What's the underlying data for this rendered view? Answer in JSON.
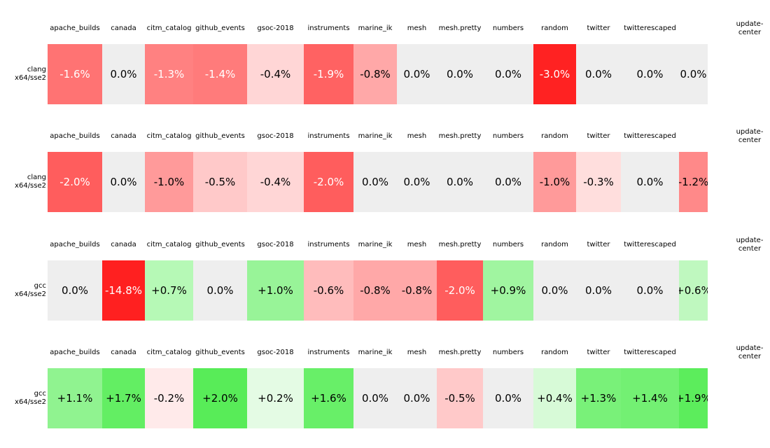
{
  "figure": {
    "background": "#ffffff",
    "zero_cell_color": "#eeeeee",
    "white_text_values": [
      "-1.3%",
      "-1.4%",
      "-1.6%",
      "-1.9%",
      "-2.0%",
      "-3.0%",
      "-14.8%"
    ],
    "value_colors": {
      "-14.8%": "#ff2020",
      "-3.0%": "#ff2222",
      "-2.0%": "#ff5d5d",
      "-1.9%": "#ff6262",
      "-1.6%": "#ff7373",
      "-1.4%": "#ff7b7b",
      "-1.3%": "#ff8181",
      "-1.2%": "#ff8989",
      "-1.0%": "#ff9a9a",
      "-0.8%": "#ffa8a8",
      "-0.6%": "#ffbcbc",
      "-0.5%": "#ffc9c9",
      "-0.4%": "#ffd6d6",
      "-0.3%": "#ffdedd",
      "-0.2%": "#ffeaea",
      "0.0%": "#eeeeee",
      "+0.2%": "#e4fbe4",
      "+0.4%": "#d7fad7",
      "+0.6%": "#bff8bf",
      "+0.7%": "#b6f9b6",
      "+0.9%": "#a0f5a0",
      "+1.0%": "#98f498",
      "+1.1%": "#90f390",
      "+1.3%": "#79f179",
      "+1.4%": "#73f073",
      "+1.6%": "#68ef68",
      "+1.7%": "#63ee63",
      "+1.9%": "#5ced5c",
      "+2.0%": "#58ec58"
    },
    "columns": [
      {
        "name": "apache_builds",
        "header_lines": [
          "apache_builds"
        ]
      },
      {
        "name": "canada",
        "header_lines": [
          "canada"
        ]
      },
      {
        "name": "citm_catalog",
        "header_lines": [
          "citm_catalog"
        ]
      },
      {
        "name": "github_events",
        "header_lines": [
          "github_events"
        ]
      },
      {
        "name": "gsoc-2018",
        "header_lines": [
          "gsoc-2018"
        ]
      },
      {
        "name": "instruments",
        "header_lines": [
          "instruments"
        ]
      },
      {
        "name": "marine_ik",
        "header_lines": [
          "marine_ik"
        ]
      },
      {
        "name": "mesh",
        "header_lines": [
          "mesh"
        ]
      },
      {
        "name": "mesh.pretty",
        "header_lines": [
          "mesh.pretty"
        ]
      },
      {
        "name": "numbers",
        "header_lines": [
          "numbers"
        ]
      },
      {
        "name": "random",
        "header_lines": [
          "random"
        ]
      },
      {
        "name": "twitter",
        "header_lines": [
          "twitter"
        ]
      },
      {
        "name": "twitterescaped",
        "header_lines": [
          "twitterescaped"
        ]
      },
      {
        "name": "update-center",
        "header_lines": [
          "update-",
          "center"
        ]
      }
    ],
    "blocks": [
      {
        "row_label_lines": [
          "clang",
          "x64/sse2"
        ],
        "values": [
          "-1.6%",
          "0.0%",
          "-1.3%",
          "-1.4%",
          "-0.4%",
          "-1.9%",
          "-0.8%",
          "0.0%",
          "0.0%",
          "0.0%",
          "-3.0%",
          "0.0%",
          "0.0%",
          "0.0%"
        ]
      },
      {
        "row_label_lines": [
          "clang",
          "x64/sse2"
        ],
        "values": [
          "-2.0%",
          "0.0%",
          "-1.0%",
          "-0.5%",
          "-0.4%",
          "-2.0%",
          "0.0%",
          "0.0%",
          "0.0%",
          "0.0%",
          "-1.0%",
          "-0.3%",
          "0.0%",
          "-1.2%"
        ]
      },
      {
        "row_label_lines": [
          "gcc",
          "x64/sse2"
        ],
        "values": [
          "0.0%",
          "-14.8%",
          "+0.7%",
          "0.0%",
          "+1.0%",
          "-0.6%",
          "-0.8%",
          "-0.8%",
          "-2.0%",
          "+0.9%",
          "0.0%",
          "0.0%",
          "0.0%",
          "+0.6%"
        ]
      },
      {
        "row_label_lines": [
          "gcc",
          "x64/sse2"
        ],
        "values": [
          "+1.1%",
          "+1.7%",
          "-0.2%",
          "+2.0%",
          "+0.2%",
          "+1.6%",
          "0.0%",
          "0.0%",
          "-0.5%",
          "0.0%",
          "+0.4%",
          "+1.3%",
          "+1.4%",
          "+1.9%"
        ]
      }
    ]
  },
  "chart_data": {
    "type": "heatmap",
    "title": "",
    "categories": [
      "apache_builds",
      "canada",
      "citm_catalog",
      "github_events",
      "gsoc-2018",
      "instruments",
      "marine_ik",
      "mesh",
      "mesh.pretty",
      "numbers",
      "random",
      "twitter",
      "twitterescaped",
      "update-center"
    ],
    "series": [
      {
        "name": "clang x64/sse2",
        "values": [
          -1.6,
          0.0,
          -1.3,
          -1.4,
          -0.4,
          -1.9,
          -0.8,
          0.0,
          0.0,
          0.0,
          -3.0,
          0.0,
          0.0,
          0.0
        ]
      },
      {
        "name": "clang x64/sse2",
        "values": [
          -2.0,
          0.0,
          -1.0,
          -0.5,
          -0.4,
          -2.0,
          0.0,
          0.0,
          0.0,
          0.0,
          -1.0,
          -0.3,
          0.0,
          -1.2
        ]
      },
      {
        "name": "gcc x64/sse2",
        "values": [
          0.0,
          -14.8,
          0.7,
          0.0,
          1.0,
          -0.6,
          -0.8,
          -0.8,
          -2.0,
          0.9,
          0.0,
          0.0,
          0.0,
          0.6
        ]
      },
      {
        "name": "gcc x64/sse2",
        "values": [
          1.1,
          1.7,
          -0.2,
          2.0,
          0.2,
          1.6,
          0.0,
          0.0,
          -0.5,
          0.0,
          0.4,
          1.3,
          1.4,
          1.9
        ]
      }
    ],
    "value_format": "signed percent, one decimal",
    "color_scale": {
      "negative": "red",
      "zero": "#eeeeee",
      "positive": "green",
      "saturates_near": 3.0
    },
    "layout_hints": {
      "blocks": "four independent heatmap strips stacked vertically, column headers repeated above each strip",
      "row_labels_position": "left",
      "last_column_clipped": true
    }
  }
}
